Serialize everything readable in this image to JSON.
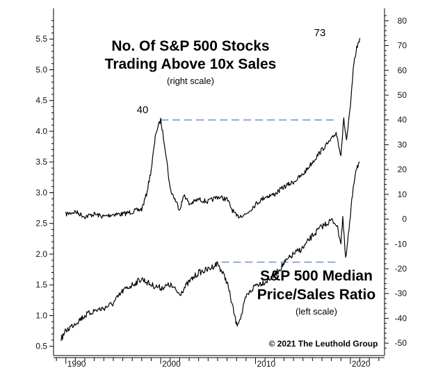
{
  "chart_data": {
    "type": "line",
    "title": "No. Of S&P 500 Stocks Trading Above 10x Sales",
    "title_lines": [
      "No. Of S&P 500 Stocks",
      "Trading Above 10x Sales"
    ],
    "title_note": "(right scale)",
    "series_label_lines": [
      "S&P 500 Median",
      "Price/Sales Ratio"
    ],
    "series_label_note": "(left scale)",
    "copyright": "© 2021  The Leuthold Group",
    "x_ticks": [
      "1990",
      "2000",
      "2010",
      "2020"
    ],
    "left_axis": {
      "range": [
        0.35,
        6.0
      ],
      "ticks": [
        "0.5",
        "1.0",
        "1.5",
        "2.0",
        "2.5",
        "3.0",
        "3.5",
        "4.0",
        "4.5",
        "5.0",
        "5.5"
      ]
    },
    "right_axis": {
      "range": [
        -55,
        85
      ],
      "ticks": [
        "-50",
        "-40",
        "-30",
        "-20",
        "-10",
        "0",
        "10",
        "20",
        "30",
        "40",
        "50",
        "60",
        "70",
        "80"
      ]
    },
    "annotations": {
      "peak_2000_label": "40",
      "peak_2020_label": "73",
      "ref_line_count": 40,
      "ref_line_ratio": 1.87
    },
    "series": [
      {
        "name": "No. Of S&P 500 Stocks Trading Above 10x Sales",
        "axis": "right",
        "points": [
          [
            1990.0,
            2
          ],
          [
            1991.0,
            3
          ],
          [
            1992.0,
            1
          ],
          [
            1993.0,
            2
          ],
          [
            1994.0,
            1
          ],
          [
            1995.0,
            2
          ],
          [
            1996.0,
            2
          ],
          [
            1997.0,
            3
          ],
          [
            1998.0,
            4
          ],
          [
            1998.5,
            10
          ],
          [
            1999.0,
            20
          ],
          [
            1999.5,
            35
          ],
          [
            2000.0,
            40
          ],
          [
            2000.5,
            28
          ],
          [
            2001.0,
            12
          ],
          [
            2001.5,
            8
          ],
          [
            2002.0,
            4
          ],
          [
            2002.5,
            10
          ],
          [
            2003.0,
            6
          ],
          [
            2004.0,
            8
          ],
          [
            2005.0,
            7
          ],
          [
            2006.0,
            9
          ],
          [
            2007.0,
            8
          ],
          [
            2007.5,
            4
          ],
          [
            2008.0,
            1
          ],
          [
            2009.0,
            2
          ],
          [
            2010.0,
            6
          ],
          [
            2011.0,
            9
          ],
          [
            2012.0,
            10
          ],
          [
            2013.0,
            13
          ],
          [
            2014.0,
            15
          ],
          [
            2015.0,
            18
          ],
          [
            2016.0,
            23
          ],
          [
            2017.0,
            28
          ],
          [
            2018.0,
            32
          ],
          [
            2018.5,
            35
          ],
          [
            2019.0,
            26
          ],
          [
            2019.3,
            40
          ],
          [
            2019.6,
            32
          ],
          [
            2020.0,
            45
          ],
          [
            2020.3,
            60
          ],
          [
            2020.6,
            68
          ],
          [
            2021.0,
            73
          ]
        ]
      },
      {
        "name": "S&P 500 Median Price/Sales Ratio",
        "axis": "left",
        "points": [
          [
            1989.5,
            0.62
          ],
          [
            1990.0,
            0.75
          ],
          [
            1991.0,
            0.88
          ],
          [
            1992.0,
            1.0
          ],
          [
            1993.0,
            1.08
          ],
          [
            1994.0,
            1.12
          ],
          [
            1995.0,
            1.2
          ],
          [
            1996.0,
            1.4
          ],
          [
            1997.0,
            1.5
          ],
          [
            1998.0,
            1.6
          ],
          [
            1999.0,
            1.5
          ],
          [
            2000.0,
            1.45
          ],
          [
            2001.0,
            1.5
          ],
          [
            2002.0,
            1.35
          ],
          [
            2003.0,
            1.55
          ],
          [
            2004.0,
            1.7
          ],
          [
            2005.0,
            1.75
          ],
          [
            2006.0,
            1.85
          ],
          [
            2006.5,
            1.7
          ],
          [
            2007.0,
            1.55
          ],
          [
            2007.5,
            1.2
          ],
          [
            2008.0,
            0.85
          ],
          [
            2008.5,
            1.0
          ],
          [
            2009.0,
            1.3
          ],
          [
            2010.0,
            1.5
          ],
          [
            2011.0,
            1.55
          ],
          [
            2012.0,
            1.65
          ],
          [
            2013.0,
            1.85
          ],
          [
            2014.0,
            2.0
          ],
          [
            2015.0,
            2.1
          ],
          [
            2016.0,
            2.3
          ],
          [
            2017.0,
            2.45
          ],
          [
            2018.0,
            2.55
          ],
          [
            2018.5,
            2.5
          ],
          [
            2019.0,
            2.2
          ],
          [
            2019.2,
            2.6
          ],
          [
            2019.5,
            1.9
          ],
          [
            2020.0,
            2.6
          ],
          [
            2020.3,
            3.1
          ],
          [
            2020.6,
            3.4
          ],
          [
            2021.0,
            3.5
          ]
        ]
      }
    ]
  }
}
